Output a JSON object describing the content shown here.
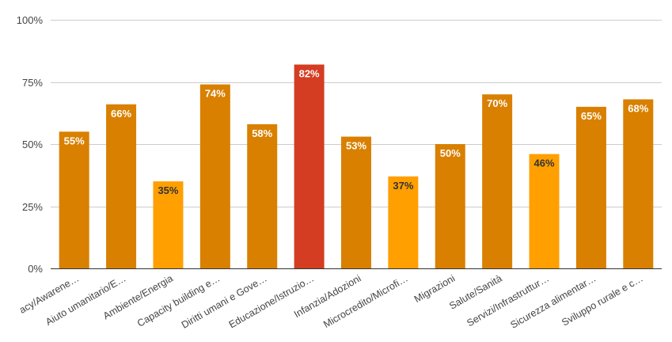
{
  "chart_data": {
    "type": "bar",
    "categories": [
      "acy/Awarene…",
      "Aiuto umanitario/E…",
      "Ambiente/Energia",
      "Capacity building e…",
      "Diritti umani e Gove…",
      "Educazione/Istruzio…",
      "Infanzia/Adozioni",
      "Microcredito/Microfi…",
      "Migrazioni",
      "Salute/Sanità",
      "Servizi/Infrastruttur…",
      "Sicurezza alimentar…",
      "Sviluppo rurale e c…"
    ],
    "values": [
      55,
      66,
      35,
      74,
      58,
      82,
      53,
      37,
      50,
      70,
      46,
      65,
      68
    ],
    "data_labels": [
      "55%",
      "66%",
      "35%",
      "74%",
      "58%",
      "82%",
      "53%",
      "37%",
      "50%",
      "70%",
      "46%",
      "65%",
      "68%"
    ],
    "bar_colors": [
      "#d98000",
      "#d98000",
      "#ff9f00",
      "#d98000",
      "#d98000",
      "#d43d22",
      "#d98000",
      "#ff9f00",
      "#d98000",
      "#d98000",
      "#ff9f00",
      "#d98000",
      "#d98000"
    ],
    "label_colors": [
      "#ffffff",
      "#ffffff",
      "#333333",
      "#ffffff",
      "#ffffff",
      "#ffffff",
      "#ffffff",
      "#333333",
      "#ffffff",
      "#ffffff",
      "#333333",
      "#ffffff",
      "#ffffff"
    ],
    "ylim": [
      0,
      100
    ],
    "yticks": [
      0,
      25,
      50,
      75,
      100
    ],
    "ytick_labels": [
      "0%",
      "25%",
      "50%",
      "75%",
      "100%"
    ],
    "grid": true,
    "title": "",
    "xlabel": "",
    "ylabel": ""
  }
}
